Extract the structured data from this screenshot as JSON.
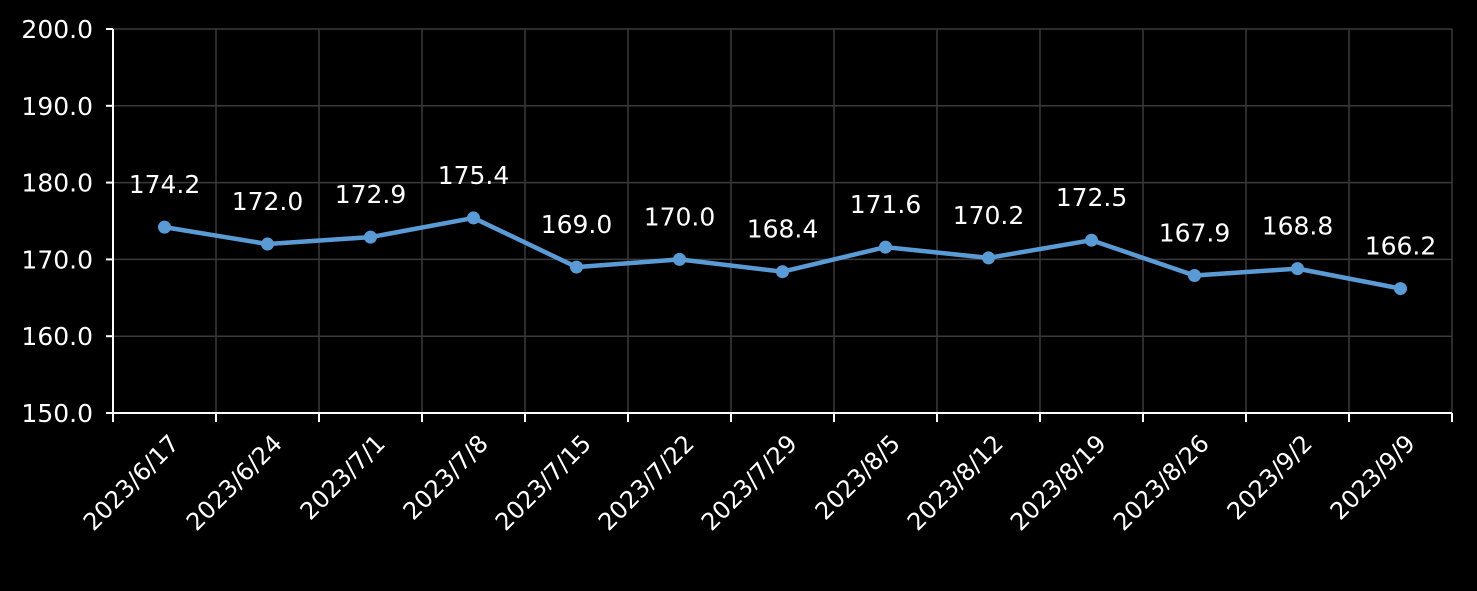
{
  "chart_data": {
    "type": "line",
    "title": "",
    "xlabel": "",
    "ylabel": "",
    "ylim": [
      150,
      200
    ],
    "yticks": [
      150,
      160,
      170,
      180,
      190,
      200
    ],
    "grid": true,
    "legend": "none",
    "categories": [
      "2023/6/17",
      "2023/6/24",
      "2023/7/1",
      "2023/7/8",
      "2023/7/15",
      "2023/7/22",
      "2023/7/29",
      "2023/8/5",
      "2023/8/12",
      "2023/8/19",
      "2023/8/26",
      "2023/9/2",
      "2023/9/9"
    ],
    "series": [
      {
        "values": [
          174.2,
          172.0,
          172.9,
          175.4,
          169.0,
          170.0,
          168.4,
          171.6,
          170.2,
          172.5,
          167.9,
          168.8,
          166.2
        ]
      }
    ],
    "colors": {
      "background": "#000000",
      "line": "#5b9bd5",
      "grid": "#3a3a3a",
      "axis": "#ffffff",
      "text": "#ffffff"
    }
  }
}
